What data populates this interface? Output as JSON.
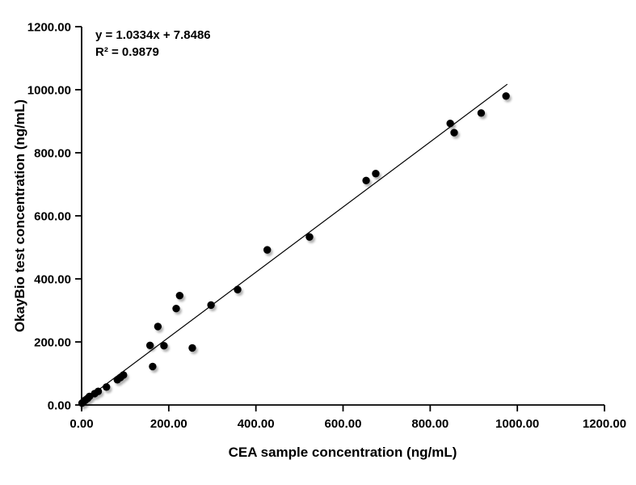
{
  "chart_data": {
    "type": "scatter",
    "equation_label": "y = 1.0334x + 7.8486",
    "r_squared_label": "R² = 0.9879",
    "xlabel": "CEA sample concentration (ng/mL)",
    "ylabel": "OkayBio test concentration (ng/mL)",
    "xlim": [
      0,
      1200
    ],
    "ylim": [
      0,
      1200
    ],
    "x_tick_values": [
      0,
      200,
      400,
      600,
      800,
      1000,
      1200
    ],
    "x_tick_labels": [
      "0.00",
      "200.00",
      "400.00",
      "600.00",
      "800.00",
      "1000.00",
      "1200.00"
    ],
    "y_tick_values": [
      0,
      200,
      400,
      600,
      800,
      1000,
      1200
    ],
    "y_tick_labels": [
      "0.00",
      "200.00",
      "400.00",
      "600.00",
      "800.00",
      "1000.00",
      "1200.00"
    ],
    "grid": false,
    "legend": false,
    "points": [
      [
        1,
        6
      ],
      [
        5,
        11
      ],
      [
        9,
        16
      ],
      [
        14,
        21
      ],
      [
        18,
        27
      ],
      [
        30,
        36
      ],
      [
        38,
        43
      ],
      [
        57,
        57
      ],
      [
        82,
        80
      ],
      [
        89,
        87
      ],
      [
        96,
        95
      ],
      [
        163,
        122
      ],
      [
        157,
        189
      ],
      [
        189,
        188
      ],
      [
        175,
        249
      ],
      [
        217,
        306
      ],
      [
        225,
        347
      ],
      [
        254,
        181
      ],
      [
        297,
        317
      ],
      [
        358,
        366
      ],
      [
        426,
        492
      ],
      [
        523,
        533
      ],
      [
        653,
        712
      ],
      [
        675,
        734
      ],
      [
        846,
        893
      ],
      [
        855,
        864
      ],
      [
        917,
        926
      ],
      [
        974,
        980
      ]
    ],
    "trendline": {
      "slope": 1.0334,
      "intercept": 7.8486,
      "x_start": 0,
      "x_end": 977
    },
    "point_color": "#000000",
    "line_color": "#000000",
    "axis_color": "#000000",
    "background_color": "#ffffff"
  }
}
